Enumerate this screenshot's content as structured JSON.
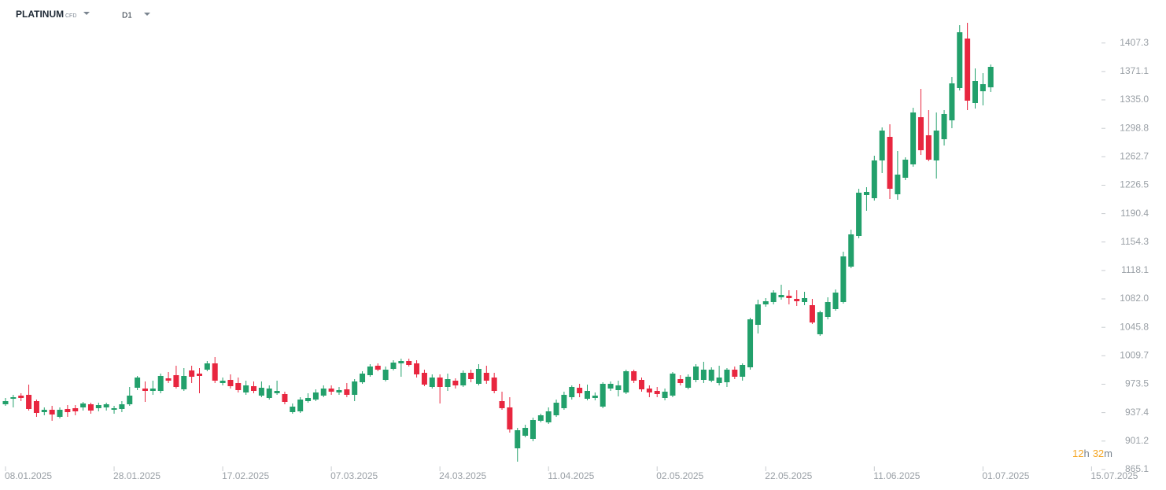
{
  "chart_data": {
    "type": "candlestick",
    "title": "PLATINUM",
    "subtitle": "CFD",
    "timeframe": "D1",
    "open": [
      948,
      955,
      959,
      960,
      952,
      938,
      941,
      932,
      942,
      943,
      944,
      948,
      943,
      944,
      941,
      942,
      948,
      969,
      968,
      965,
      965,
      981,
      985,
      967,
      991,
      987,
      992,
      1000,
      975,
      979,
      975,
      963,
      971,
      959,
      956,
      962,
      961,
      938,
      939,
      952,
      954,
      959,
      968,
      963,
      967,
      960,
      976,
      985,
      997,
      979,
      993,
      1000,
      1003,
      1000,
      988,
      970,
      982,
      970,
      978,
      972,
      988,
      974,
      988,
      982,
      952,
      944,
      892,
      908,
      904,
      927,
      925,
      934,
      943,
      957,
      969,
      955,
      956,
      945,
      968,
      966,
      963,
      990,
      979,
      968,
      965,
      956,
      959,
      980,
      969,
      979,
      979,
      978,
      975,
      976,
      992,
      983,
      995,
      1049,
      1075,
      1078,
      1084,
      1086,
      1082,
      1078,
      1074,
      1037,
      1059,
      1069,
      1078,
      1123,
      1162,
      1214,
      1210,
      1258,
      1288,
      1215,
      1236,
      1253,
      1313,
      1290,
      1258,
      1285,
      1309,
      1350,
      1413,
      1331,
      1346,
      1351
    ],
    "high": [
      956,
      960,
      962,
      973,
      954,
      944,
      946,
      944,
      947,
      947,
      951,
      950,
      950,
      950,
      946,
      952,
      970,
      984,
      977,
      978,
      987,
      989,
      997,
      994,
      997,
      994,
      1003,
      1008,
      982,
      986,
      982,
      978,
      977,
      977,
      972,
      978,
      964,
      949,
      957,
      962,
      967,
      972,
      972,
      970,
      975,
      980,
      990,
      999,
      1000,
      996,
      1004,
      1006,
      1006,
      1004,
      992,
      986,
      986,
      987,
      981,
      991,
      992,
      999,
      997,
      988,
      964,
      957,
      918,
      922,
      931,
      936,
      944,
      954,
      964,
      972,
      974,
      973,
      963,
      976,
      977,
      978,
      992,
      992,
      982,
      972,
      970,
      968,
      989,
      985,
      986,
      999,
      1002,
      995,
      997,
      994,
      996,
      1000,
      1058,
      1081,
      1083,
      1093,
      1100,
      1093,
      1093,
      1091,
      1082,
      1067,
      1084,
      1094,
      1142,
      1170,
      1222,
      1224,
      1264,
      1300,
      1304,
      1270,
      1262,
      1325,
      1349,
      1322,
      1319,
      1322,
      1364,
      1430,
      1433,
      1375,
      1369,
      1380
    ],
    "low": [
      946,
      944,
      952,
      940,
      932,
      934,
      927,
      930,
      932,
      934,
      940,
      936,
      939,
      940,
      936,
      938,
      946,
      966,
      951,
      960,
      962,
      975,
      968,
      965,
      975,
      962,
      990,
      975,
      972,
      968,
      963,
      960,
      962,
      957,
      954,
      960,
      948,
      936,
      937,
      950,
      952,
      957,
      960,
      960,
      957,
      952,
      974,
      983,
      990,
      977,
      991,
      983,
      996,
      982,
      971,
      968,
      949,
      965,
      968,
      970,
      976,
      972,
      974,
      962,
      941,
      912,
      875,
      906,
      901,
      925,
      923,
      932,
      941,
      954,
      957,
      953,
      953,
      943,
      965,
      958,
      961,
      975,
      964,
      957,
      957,
      953,
      957,
      972,
      967,
      976,
      975,
      976,
      972,
      970,
      980,
      978,
      992,
      1038,
      1072,
      1075,
      1081,
      1075,
      1073,
      1074,
      1050,
      1035,
      1056,
      1067,
      1076,
      1121,
      1159,
      1194,
      1207,
      1242,
      1209,
      1208,
      1233,
      1250,
      1265,
      1257,
      1235,
      1277,
      1299,
      1347,
      1322,
      1324,
      1328,
      1345
    ],
    "close": [
      952,
      957,
      956,
      942,
      937,
      941,
      935,
      941,
      938,
      939,
      949,
      940,
      947,
      948,
      943,
      948,
      959,
      982,
      965,
      968,
      984,
      978,
      970,
      984,
      983,
      984,
      1000,
      978,
      978,
      971,
      966,
      972,
      965,
      969,
      968,
      965,
      951,
      945,
      954,
      956,
      963,
      968,
      964,
      966,
      960,
      977,
      987,
      996,
      992,
      992,
      1001,
      1003,
      998,
      986,
      973,
      982,
      970,
      980,
      972,
      988,
      980,
      993,
      978,
      965,
      943,
      916,
      915,
      918,
      928,
      934,
      939,
      950,
      960,
      970,
      962,
      965,
      959,
      974,
      974,
      972,
      990,
      978,
      967,
      963,
      961,
      964,
      987,
      975,
      983,
      996,
      992,
      992,
      982,
      992,
      983,
      998,
      1056,
      1075,
      1079,
      1090,
      1087,
      1083,
      1079,
      1083,
      1052,
      1065,
      1078,
      1090,
      1136,
      1164,
      1217,
      1218,
      1258,
      1296,
      1222,
      1240,
      1259,
      1319,
      1271,
      1259,
      1296,
      1317,
      1356,
      1421,
      1334,
      1359,
      1355,
      1377
    ],
    "up_color": "#22a06b",
    "down_color": "#e8263f",
    "ylim": [
      862,
      1462
    ],
    "yticks": [
      865.1,
      901.2,
      937.4,
      973.5,
      1009.7,
      1045.8,
      {
        "value": 1082,
        "label": "1082.0"
      },
      1118.1,
      1154.3,
      1190.4,
      1226.5,
      1262.7,
      1298.8,
      {
        "value": 1335,
        "label": "1335.0"
      },
      1371.1,
      1407.3
    ],
    "xlim": [
      -0.71,
      141.28
    ],
    "xticks": [
      {
        "value": 0,
        "label": "08.01.2025"
      },
      {
        "value": 14,
        "label": "28.01.2025"
      },
      {
        "value": 28,
        "label": "17.02.2025"
      },
      {
        "value": 42,
        "label": "07.03.2025"
      },
      {
        "value": 56,
        "label": "24.03.2025"
      },
      {
        "value": 70,
        "label": "11.04.2025"
      },
      {
        "value": 84,
        "label": "02.05.2025"
      },
      {
        "value": 98,
        "label": "22.05.2025"
      },
      {
        "value": 112,
        "label": "11.06.2025"
      },
      {
        "value": 126,
        "label": "01.07.2025"
      },
      {
        "value": 140,
        "label": "15.07.2025"
      }
    ]
  },
  "countdown": {
    "hours": "12",
    "hours_unit": "h",
    "minutes": "32",
    "minutes_unit": "m"
  }
}
